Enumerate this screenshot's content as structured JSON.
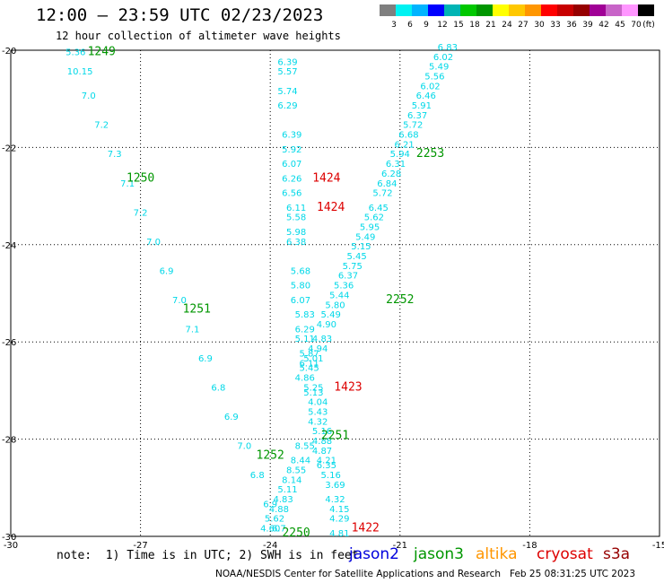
{
  "header": {
    "title": "12:00 – 23:59 UTC 02/23/2023",
    "subtitle": "12 hour collection of altimeter wave heights"
  },
  "colorbar": {
    "colors": [
      "#7f7f7f",
      "#00f2f2",
      "#00b4ff",
      "#0000ff",
      "#00b4b4",
      "#00c800",
      "#009600",
      "#ffff00",
      "#ffc800",
      "#ff9600",
      "#ff0000",
      "#c80000",
      "#960000",
      "#a00096",
      "#c864c8",
      "#ff96ff",
      "#000000"
    ],
    "labels": [
      "3",
      "6",
      "9",
      "12",
      "15",
      "18",
      "21",
      "24",
      "27",
      "30",
      "33",
      "36",
      "39",
      "42",
      "45",
      "70",
      "(ft)"
    ]
  },
  "footer": {
    "note": "note:  1) Time is in UTC; 2) SWH is in feet",
    "satellites": [
      {
        "name": "jason2",
        "color": "#0000dd"
      },
      {
        "name": "jason3",
        "color": "#009600"
      },
      {
        "name": "altika",
        "color": "#ff9600"
      },
      {
        "name": "cryosat",
        "color": "#dd0000"
      },
      {
        "name": "s3a",
        "color": "#960000"
      }
    ],
    "credit": "NOAA/NESDIS Center for Satellite Applications and Research   Feb 25 08:31:25 UTC 2023"
  },
  "chart_data": {
    "type": "scatter",
    "xlim": [
      -30,
      -15
    ],
    "ylim": [
      -30,
      -20
    ],
    "x_ticks": [
      -30,
      -27,
      -24,
      -21,
      -18,
      -15
    ],
    "y_ticks": [
      -20,
      -22,
      -24,
      -26,
      -28,
      -30
    ],
    "grid": true,
    "track_color": "#00d8e8",
    "tracks": [
      {
        "name": "track-a",
        "points": [
          [
            -28.5,
            -20.1,
            "5.36"
          ],
          [
            -28.4,
            -20.5,
            "10.15"
          ],
          [
            -28.2,
            -21.0,
            "7.0"
          ],
          [
            -27.9,
            -21.6,
            "7.2"
          ],
          [
            -27.6,
            -22.2,
            "7.3"
          ],
          [
            -27.3,
            -22.8,
            "7.1"
          ],
          [
            -27.0,
            -23.4,
            "7.2"
          ],
          [
            -26.7,
            -24.0,
            "7.0"
          ],
          [
            -26.4,
            -24.6,
            "6.9"
          ],
          [
            -26.1,
            -25.2,
            "7.0"
          ],
          [
            -25.8,
            -25.8,
            "7.1"
          ],
          [
            -25.5,
            -26.4,
            "6.9"
          ],
          [
            -25.2,
            -27.0,
            "6.8"
          ],
          [
            -24.9,
            -27.6,
            "6.9"
          ],
          [
            -24.6,
            -28.2,
            "7.0"
          ],
          [
            -24.3,
            -28.8,
            "6.8"
          ],
          [
            -24.0,
            -29.4,
            "6.9"
          ],
          [
            -23.8,
            -29.9,
            "6.7"
          ]
        ]
      },
      {
        "name": "track-b",
        "points": [
          [
            -23.6,
            -20.3,
            "6.39"
          ],
          [
            -23.6,
            -20.5,
            "5.57"
          ],
          [
            -23.6,
            -20.9,
            "5.74"
          ],
          [
            -23.6,
            -21.2,
            "6.29"
          ],
          [
            -23.5,
            -21.8,
            "6.39"
          ],
          [
            -23.5,
            -22.1,
            "5.92"
          ],
          [
            -23.5,
            -22.4,
            "6.07"
          ],
          [
            -23.5,
            -22.7,
            "6.26"
          ],
          [
            -23.5,
            -23.0,
            "6.56"
          ],
          [
            -23.4,
            -23.3,
            "6.11"
          ],
          [
            -23.4,
            -23.5,
            "5.58"
          ],
          [
            -23.4,
            -23.8,
            "5.98"
          ],
          [
            -23.4,
            -24.0,
            "6.38"
          ],
          [
            -23.3,
            -24.6,
            "5.68"
          ],
          [
            -23.3,
            -24.9,
            "5.80"
          ],
          [
            -23.3,
            -25.2,
            "6.07"
          ],
          [
            -23.2,
            -25.5,
            "5.83"
          ],
          [
            -23.2,
            -25.8,
            "6.29"
          ],
          [
            -23.2,
            -26.0,
            "5.11"
          ],
          [
            -23.1,
            -26.3,
            "5.87"
          ],
          [
            -23.1,
            -26.5,
            "6.11"
          ]
        ]
      },
      {
        "name": "track-c",
        "points": [
          [
            -23.0,
            -27.0,
            "5.25"
          ],
          [
            -23.0,
            -27.1,
            "5.13"
          ],
          [
            -22.9,
            -27.3,
            "4.04"
          ],
          [
            -22.9,
            -27.5,
            "5.43"
          ],
          [
            -22.9,
            -27.7,
            "4.32"
          ],
          [
            -22.8,
            -27.9,
            "5.16"
          ],
          [
            -22.8,
            -28.1,
            "4.88"
          ],
          [
            -22.8,
            -28.3,
            "4.87"
          ],
          [
            -22.7,
            -28.5,
            "4.21"
          ],
          [
            -22.7,
            -28.6,
            "6.35"
          ],
          [
            -22.6,
            -28.8,
            "5.16"
          ],
          [
            -22.5,
            -29.0,
            "3.69"
          ],
          [
            -22.5,
            -29.3,
            "4.32"
          ],
          [
            -22.4,
            -29.5,
            "4.15"
          ],
          [
            -22.4,
            -29.7,
            "4.29"
          ],
          [
            -22.4,
            -30.0,
            "4.81"
          ]
        ]
      },
      {
        "name": "track-d",
        "points": [
          [
            -19.9,
            -20.0,
            "6.83"
          ],
          [
            -20.0,
            -20.2,
            "6.02"
          ],
          [
            -20.1,
            -20.4,
            "5.49"
          ],
          [
            -20.2,
            -20.6,
            "5.56"
          ],
          [
            -20.3,
            -20.8,
            "6.02"
          ],
          [
            -20.4,
            -21.0,
            "6.46"
          ],
          [
            -20.5,
            -21.2,
            "5.91"
          ],
          [
            -20.6,
            -21.4,
            "6.37"
          ],
          [
            -20.7,
            -21.6,
            "5.72"
          ],
          [
            -20.8,
            -21.8,
            "6.68"
          ],
          [
            -20.9,
            -22.0,
            "6.21"
          ],
          [
            -21.0,
            -22.2,
            "5.94"
          ],
          [
            -21.1,
            -22.4,
            "6.31"
          ],
          [
            -21.2,
            -22.6,
            "6.28"
          ],
          [
            -21.3,
            -22.8,
            "6.84"
          ],
          [
            -21.4,
            -23.0,
            "5.72"
          ],
          [
            -21.5,
            -23.3,
            "6.45"
          ],
          [
            -21.6,
            -23.5,
            "5.62"
          ],
          [
            -21.7,
            -23.7,
            "5.95"
          ],
          [
            -21.8,
            -23.9,
            "5.49"
          ],
          [
            -21.9,
            -24.1,
            "5.15"
          ],
          [
            -22.0,
            -24.3,
            "5.45"
          ],
          [
            -22.1,
            -24.5,
            "5.75"
          ],
          [
            -22.2,
            -24.7,
            "6.37"
          ],
          [
            -22.3,
            -24.9,
            "5.36"
          ],
          [
            -22.4,
            -25.1,
            "5.44"
          ],
          [
            -22.5,
            -25.3,
            "5.80"
          ],
          [
            -22.6,
            -25.5,
            "5.49"
          ],
          [
            -22.7,
            -25.7,
            "4.90"
          ],
          [
            -22.8,
            -26.0,
            "4.83"
          ],
          [
            -22.9,
            -26.2,
            "4.94"
          ],
          [
            -23.0,
            -26.4,
            "5.01"
          ],
          [
            -23.1,
            -26.6,
            "5.45"
          ],
          [
            -23.2,
            -26.8,
            "4.86"
          ]
        ]
      },
      {
        "name": "track-e",
        "points": [
          [
            -23.2,
            -28.2,
            "8.55"
          ],
          [
            -23.3,
            -28.5,
            "8.44"
          ],
          [
            -23.4,
            -28.7,
            "8.55"
          ],
          [
            -23.5,
            -28.9,
            "8.14"
          ],
          [
            -23.6,
            -29.1,
            "5.11"
          ],
          [
            -23.7,
            -29.3,
            "4.83"
          ],
          [
            -23.8,
            -29.5,
            "4.88"
          ],
          [
            -23.9,
            -29.7,
            "5.62"
          ],
          [
            -24.0,
            -29.9,
            "4.60"
          ]
        ]
      }
    ],
    "time_labels": [
      {
        "text": "1249",
        "x": -27.9,
        "y": -20.1,
        "color": "#009600"
      },
      {
        "text": "1250",
        "x": -27.0,
        "y": -22.7,
        "color": "#009600"
      },
      {
        "text": "1251",
        "x": -25.7,
        "y": -25.4,
        "color": "#009600"
      },
      {
        "text": "1252",
        "x": -24.0,
        "y": -28.4,
        "color": "#009600"
      },
      {
        "text": "2250",
        "x": -23.4,
        "y": -30.0,
        "color": "#009600"
      },
      {
        "text": "2251",
        "x": -22.5,
        "y": -28.0,
        "color": "#009600"
      },
      {
        "text": "2252",
        "x": -21.0,
        "y": -25.2,
        "color": "#009600"
      },
      {
        "text": "2253",
        "x": -20.3,
        "y": -22.2,
        "color": "#009600"
      },
      {
        "text": "1424",
        "x": -22.7,
        "y": -22.7,
        "color": "#dd0000"
      },
      {
        "text": "1424",
        "x": -22.6,
        "y": -23.3,
        "color": "#dd0000"
      },
      {
        "text": "1423",
        "x": -22.2,
        "y": -27.0,
        "color": "#dd0000"
      },
      {
        "text": "1422",
        "x": -21.8,
        "y": -29.9,
        "color": "#dd0000"
      }
    ]
  }
}
